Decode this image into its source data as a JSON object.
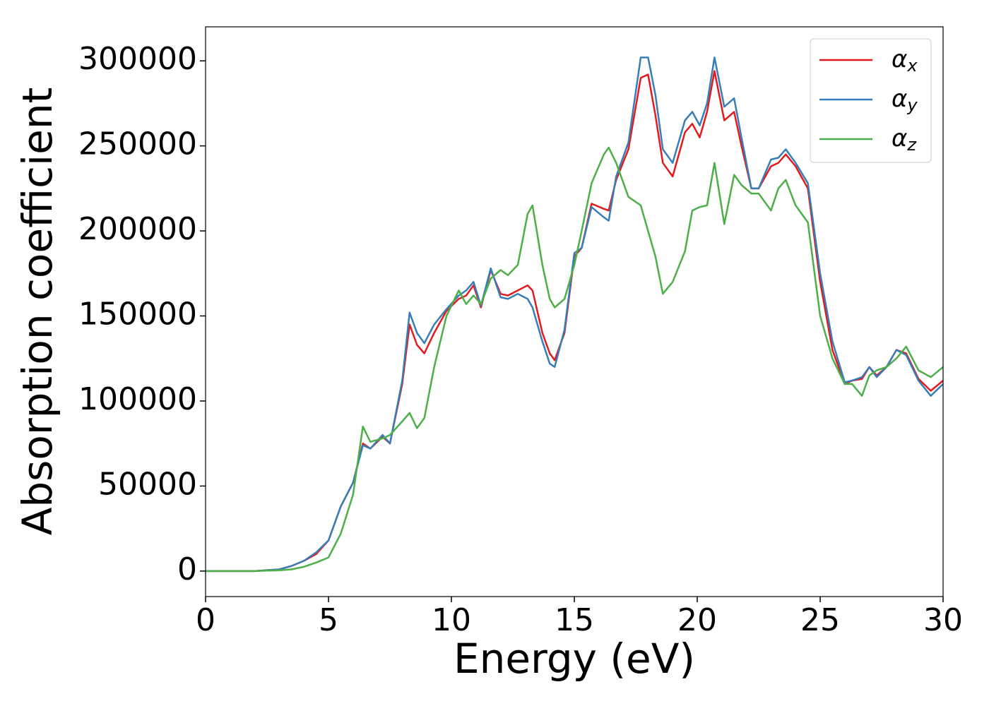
{
  "chart_data": {
    "type": "line",
    "xlabel": "Energy (eV)",
    "ylabel": "Absorption coefficient",
    "x": [
      0,
      2,
      3,
      3.5,
      4,
      4.5,
      5,
      5.5,
      6,
      6.4,
      6.7,
      7.2,
      7.5,
      8,
      8.3,
      8.6,
      8.9,
      9.3,
      9.8,
      10.3,
      10.6,
      10.9,
      11.2,
      11.6,
      12,
      12.3,
      12.7,
      13.1,
      13.3,
      13.7,
      14,
      14.2,
      14.6,
      15,
      15.3,
      15.7,
      16.2,
      16.4,
      16.7,
      17.2,
      17.7,
      18,
      18.3,
      18.6,
      19,
      19.5,
      19.8,
      20.1,
      20.4,
      20.7,
      21.1,
      21.5,
      21.8,
      22.2,
      22.5,
      23,
      23.3,
      23.6,
      24,
      24.5,
      25,
      25.5,
      26,
      26.3,
      26.7,
      27,
      27.3,
      27.7,
      28.1,
      28.5,
      29,
      29.5,
      30
    ],
    "series": [
      {
        "name": "αx",
        "color": "#e41a1c",
        "values": [
          0,
          0,
          1000,
          3000,
          6000,
          10000,
          18000,
          38000,
          52000,
          75000,
          72000,
          79000,
          75000,
          110000,
          145000,
          133000,
          128000,
          140000,
          153000,
          160000,
          162000,
          168000,
          155000,
          177000,
          163000,
          162000,
          165000,
          168000,
          165000,
          140000,
          128000,
          124000,
          140000,
          185000,
          190000,
          216000,
          213000,
          212000,
          230000,
          248000,
          290000,
          292000,
          268000,
          240000,
          232000,
          258000,
          263000,
          255000,
          270000,
          294000,
          265000,
          270000,
          250000,
          225000,
          225000,
          238000,
          240000,
          245000,
          238000,
          225000,
          170000,
          130000,
          110000,
          112000,
          113000,
          120000,
          115000,
          120000,
          130000,
          128000,
          113000,
          106000,
          112000
        ]
      },
      {
        "name": "αy",
        "color": "#377eb8",
        "values": [
          0,
          0,
          1000,
          3000,
          6000,
          11000,
          18000,
          38000,
          52000,
          74000,
          72000,
          80000,
          75000,
          112000,
          152000,
          140000,
          134000,
          145000,
          154000,
          162000,
          165000,
          170000,
          156000,
          178000,
          161000,
          160000,
          163000,
          160000,
          155000,
          135000,
          122000,
          120000,
          142000,
          187000,
          190000,
          214000,
          208000,
          206000,
          232000,
          252000,
          302000,
          302000,
          280000,
          248000,
          240000,
          265000,
          270000,
          262000,
          275000,
          302000,
          273000,
          278000,
          255000,
          225000,
          225000,
          242000,
          243000,
          248000,
          240000,
          228000,
          175000,
          135000,
          111000,
          112000,
          114000,
          120000,
          114000,
          120000,
          130000,
          127000,
          112000,
          103000,
          110000
        ]
      },
      {
        "name": "αz",
        "color": "#4daf4a",
        "values": [
          0,
          0,
          500,
          1000,
          2500,
          5000,
          8000,
          22000,
          45000,
          85000,
          76000,
          78000,
          80000,
          88000,
          93000,
          84000,
          90000,
          120000,
          150000,
          165000,
          157000,
          162000,
          157000,
          172000,
          177000,
          174000,
          180000,
          210000,
          215000,
          180000,
          160000,
          155000,
          160000,
          180000,
          200000,
          228000,
          245000,
          249000,
          240000,
          220000,
          215000,
          200000,
          185000,
          163000,
          170000,
          188000,
          212000,
          214000,
          215000,
          240000,
          204000,
          233000,
          227000,
          222000,
          222000,
          212000,
          225000,
          230000,
          215000,
          205000,
          150000,
          125000,
          110000,
          110000,
          103000,
          115000,
          118000,
          120000,
          125000,
          132000,
          118000,
          114000,
          120000
        ]
      }
    ],
    "xlim": [
      0,
      30
    ],
    "xticks": [
      0,
      5,
      10,
      15,
      20,
      25,
      30
    ],
    "ylim": [
      -15000,
      320000
    ],
    "yticks": [
      0,
      50000,
      100000,
      150000,
      200000,
      250000,
      300000
    ],
    "legend": "upper right"
  }
}
